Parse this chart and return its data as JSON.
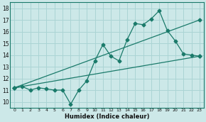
{
  "xlabel": "Humidex (Indice chaleur)",
  "bg_color": "#cce8e8",
  "grid_color": "#aad4d4",
  "line_color": "#1a7a6a",
  "xlim": [
    -0.5,
    23.5
  ],
  "ylim": [
    9.5,
    18.5
  ],
  "xticks": [
    0,
    1,
    2,
    3,
    4,
    5,
    6,
    7,
    8,
    9,
    10,
    11,
    12,
    13,
    14,
    15,
    16,
    17,
    18,
    19,
    20,
    21,
    22,
    23
  ],
  "yticks": [
    10,
    11,
    12,
    13,
    14,
    15,
    16,
    17,
    18
  ],
  "zigzag_x": [
    0,
    1,
    2,
    3,
    4,
    5,
    6,
    7,
    8,
    9,
    10,
    11,
    12,
    13,
    14,
    15,
    16,
    17,
    18,
    19,
    20,
    21,
    22,
    23
  ],
  "zigzag_y": [
    11.2,
    11.3,
    11.0,
    11.2,
    11.1,
    11.0,
    11.0,
    9.8,
    11.0,
    11.8,
    13.5,
    14.9,
    13.9,
    13.5,
    15.3,
    16.7,
    16.6,
    17.1,
    17.8,
    16.1,
    15.2,
    14.1,
    14.0,
    13.9
  ],
  "trend1_x": [
    0,
    23
  ],
  "trend1_y": [
    11.2,
    17.0
  ],
  "trend2_x": [
    0,
    23
  ],
  "trend2_y": [
    11.2,
    13.9
  ],
  "marker_size": 2.5
}
